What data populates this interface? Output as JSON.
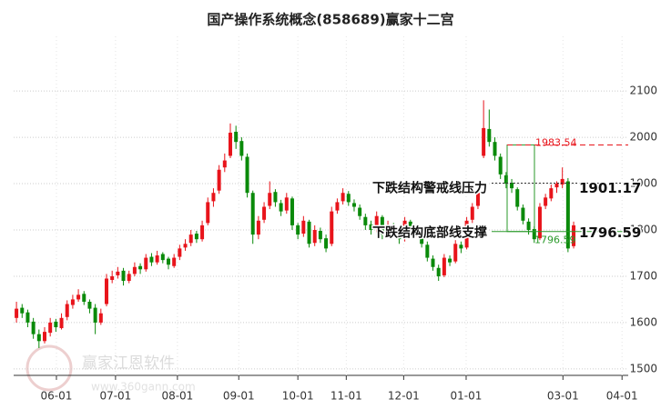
{
  "chart_data": {
    "type": "candlestick",
    "title": "国产操作系统概念(858689)赢家十二宫",
    "watermark": {
      "name": "赢家江恩软件",
      "url": "www.360gann.com"
    },
    "up_color": "#e8141b",
    "down_color": "#0a8a0a",
    "xlim": [
      -0.5,
      108.7
    ],
    "xticks": [
      {
        "value": 7.1,
        "label": "06-01"
      },
      {
        "value": 17.6,
        "label": "07-01"
      },
      {
        "value": 28.6,
        "label": "08-01"
      },
      {
        "value": 39.5,
        "label": "09-01"
      },
      {
        "value": 50,
        "label": "10-01"
      },
      {
        "value": 58.6,
        "label": "11-01"
      },
      {
        "value": 68.8,
        "label": "12-01"
      },
      {
        "value": 79.9,
        "label": "01-01"
      },
      {
        "value": 97.1,
        "label": "03-01"
      },
      {
        "value": 107.6,
        "label": "04-01"
      }
    ],
    "ylim": [
      1486,
      2218
    ],
    "yticks": [
      1500,
      1600,
      1700,
      1800,
      1900,
      2000,
      2100
    ],
    "grid": true,
    "candles": [
      [
        1610,
        1645,
        1600,
        1630
      ],
      [
        1632,
        1640,
        1610,
        1620
      ],
      [
        1622,
        1628,
        1590,
        1600
      ],
      [
        1602,
        1610,
        1565,
        1575
      ],
      [
        1575,
        1585,
        1545,
        1560
      ],
      [
        1560,
        1590,
        1555,
        1580
      ],
      [
        1578,
        1610,
        1570,
        1600
      ],
      [
        1602,
        1608,
        1580,
        1590
      ],
      [
        1588,
        1620,
        1585,
        1610
      ],
      [
        1612,
        1648,
        1605,
        1640
      ],
      [
        1638,
        1660,
        1630,
        1650
      ],
      [
        1650,
        1672,
        1645,
        1660
      ],
      [
        1662,
        1668,
        1638,
        1645
      ],
      [
        1645,
        1650,
        1620,
        1630
      ],
      [
        1632,
        1640,
        1575,
        1600
      ],
      [
        1600,
        1630,
        1595,
        1620
      ],
      [
        1640,
        1705,
        1635,
        1695
      ],
      [
        1692,
        1712,
        1685,
        1700
      ],
      [
        1702,
        1720,
        1695,
        1710
      ],
      [
        1712,
        1718,
        1680,
        1690
      ],
      [
        1690,
        1712,
        1685,
        1705
      ],
      [
        1705,
        1730,
        1700,
        1720
      ],
      [
        1722,
        1728,
        1705,
        1715
      ],
      [
        1715,
        1748,
        1710,
        1740
      ],
      [
        1742,
        1750,
        1722,
        1730
      ],
      [
        1730,
        1755,
        1725,
        1745
      ],
      [
        1748,
        1752,
        1728,
        1735
      ],
      [
        1738,
        1742,
        1715,
        1725
      ],
      [
        1722,
        1748,
        1718,
        1740
      ],
      [
        1742,
        1768,
        1735,
        1760
      ],
      [
        1762,
        1780,
        1755,
        1770
      ],
      [
        1772,
        1800,
        1765,
        1790
      ],
      [
        1792,
        1798,
        1772,
        1780
      ],
      [
        1780,
        1820,
        1775,
        1810
      ],
      [
        1815,
        1870,
        1810,
        1860
      ],
      [
        1862,
        1890,
        1850,
        1880
      ],
      [
        1885,
        1940,
        1878,
        1930
      ],
      [
        1935,
        1965,
        1925,
        1950
      ],
      [
        1960,
        2030,
        1955,
        2010
      ],
      [
        2012,
        2025,
        1975,
        1990
      ],
      [
        1992,
        2000,
        1950,
        1960
      ],
      [
        1958,
        1965,
        1870,
        1880
      ],
      [
        1880,
        1885,
        1770,
        1790
      ],
      [
        1790,
        1830,
        1780,
        1820
      ],
      [
        1822,
        1860,
        1815,
        1850
      ],
      [
        1852,
        1905,
        1845,
        1880
      ],
      [
        1882,
        1888,
        1850,
        1860
      ],
      [
        1858,
        1865,
        1830,
        1840
      ],
      [
        1842,
        1880,
        1835,
        1870
      ],
      [
        1868,
        1872,
        1800,
        1810
      ],
      [
        1810,
        1815,
        1780,
        1790
      ],
      [
        1792,
        1830,
        1785,
        1820
      ],
      [
        1818,
        1822,
        1762,
        1770
      ],
      [
        1772,
        1810,
        1765,
        1800
      ],
      [
        1798,
        1805,
        1772,
        1780
      ],
      [
        1782,
        1790,
        1752,
        1760
      ],
      [
        1770,
        1850,
        1765,
        1840
      ],
      [
        1842,
        1868,
        1835,
        1860
      ],
      [
        1862,
        1890,
        1855,
        1880
      ],
      [
        1878,
        1884,
        1852,
        1860
      ],
      [
        1858,
        1866,
        1840,
        1850
      ],
      [
        1848,
        1855,
        1822,
        1830
      ],
      [
        1828,
        1835,
        1800,
        1810
      ],
      [
        1812,
        1820,
        1790,
        1800
      ],
      [
        1802,
        1840,
        1795,
        1830
      ],
      [
        1828,
        1832,
        1780,
        1790
      ],
      [
        1792,
        1820,
        1785,
        1810
      ],
      [
        1808,
        1815,
        1790,
        1800
      ],
      [
        1798,
        1805,
        1770,
        1780
      ],
      [
        1782,
        1828,
        1775,
        1820
      ],
      [
        1818,
        1822,
        1782,
        1790
      ],
      [
        1792,
        1812,
        1785,
        1800
      ],
      [
        1798,
        1802,
        1762,
        1770
      ],
      [
        1768,
        1775,
        1732,
        1740
      ],
      [
        1738,
        1745,
        1712,
        1720
      ],
      [
        1718,
        1725,
        1690,
        1700
      ],
      [
        1702,
        1748,
        1698,
        1740
      ],
      [
        1738,
        1745,
        1722,
        1730
      ],
      [
        1732,
        1778,
        1728,
        1770
      ],
      [
        1768,
        1775,
        1750,
        1760
      ],
      [
        1762,
        1828,
        1758,
        1820
      ],
      [
        1822,
        1858,
        1815,
        1850
      ],
      [
        1852,
        1888,
        1845,
        1880
      ],
      [
        1960,
        2080,
        1955,
        2020
      ],
      [
        2018,
        2060,
        1980,
        1990
      ],
      [
        1990,
        2000,
        1950,
        1960
      ],
      [
        1958,
        1965,
        1910,
        1920
      ],
      [
        1918,
        1925,
        1890,
        1900
      ],
      [
        1902,
        1910,
        1880,
        1890
      ],
      [
        1888,
        1892,
        1842,
        1850
      ],
      [
        1848,
        1855,
        1812,
        1820
      ],
      [
        1818,
        1825,
        1790,
        1800
      ],
      [
        1802,
        1808,
        1772,
        1780
      ],
      [
        1782,
        1858,
        1778,
        1850
      ],
      [
        1852,
        1878,
        1845,
        1870
      ],
      [
        1868,
        1898,
        1862,
        1890
      ],
      [
        1892,
        1905,
        1880,
        1900
      ],
      [
        1898,
        1935,
        1890,
        1910
      ],
      [
        1905,
        1912,
        1752,
        1760
      ],
      [
        1765,
        1818,
        1760,
        1810
      ]
    ],
    "high_line": 1983.54,
    "resistance": {
      "label": "下跌结构警戒线压力",
      "value": 1901.17
    },
    "support": {
      "label": "下跌结构底部线支撑",
      "value": 1796.59
    }
  }
}
